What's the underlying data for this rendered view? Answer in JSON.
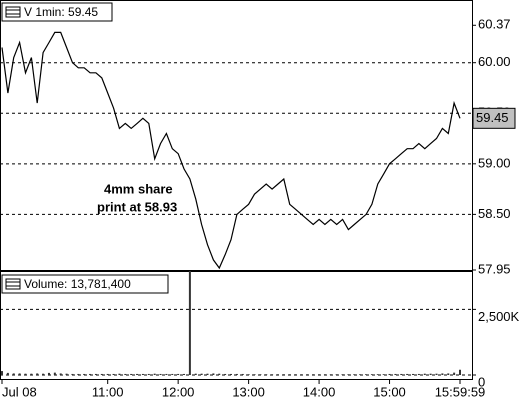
{
  "chart_data": [
    {
      "type": "line",
      "legend": "V 1min: 59.45",
      "color": "#000000",
      "values": [
        60.15,
        59.7,
        60.05,
        60.2,
        59.9,
        60.05,
        59.6,
        60.1,
        60.2,
        60.3,
        60.3,
        60.15,
        60.0,
        59.95,
        59.95,
        59.9,
        59.9,
        59.85,
        59.7,
        59.55,
        59.35,
        59.4,
        59.35,
        59.4,
        59.45,
        59.4,
        59.05,
        59.2,
        59.3,
        59.15,
        59.1,
        58.95,
        58.85,
        58.65,
        58.4,
        58.2,
        58.05,
        57.97,
        58.1,
        58.25,
        58.5,
        58.55,
        58.6,
        58.7,
        58.75,
        58.8,
        58.75,
        58.8,
        58.85,
        58.6,
        58.55,
        58.5,
        58.45,
        58.4,
        58.45,
        58.4,
        58.45,
        58.4,
        58.45,
        58.35,
        58.4,
        58.45,
        58.5,
        58.6,
        58.8,
        58.9,
        59.0,
        59.05,
        59.1,
        59.15,
        59.15,
        59.2,
        59.15,
        59.2,
        59.25,
        59.35,
        59.3,
        59.6,
        59.45
      ],
      "last_price": 59.45,
      "annotation": [
        "4mm share",
        "print at 58.93"
      ],
      "ylim": [
        57.95,
        60.62
      ],
      "yticks": [
        60.37,
        {
          "value": 60,
          "label": "60.00"
        },
        {
          "value": 59.5,
          "label": "59.50"
        },
        {
          "value": 59,
          "label": "59.00"
        },
        {
          "value": 58.5,
          "label": "58.50"
        },
        57.95
      ],
      "grid": true
    },
    {
      "type": "bar",
      "legend": "Volume: 13,781,400",
      "color": "#333333",
      "categories": [
        "Jul 08",
        null,
        null,
        null,
        null,
        null,
        null,
        null,
        null,
        null,
        null,
        null,
        null,
        null,
        null,
        null,
        null,
        null,
        "11:00",
        null,
        null,
        null,
        null,
        null,
        null,
        null,
        null,
        null,
        null,
        null,
        "12:00",
        null,
        null,
        null,
        null,
        null,
        null,
        null,
        null,
        null,
        null,
        null,
        "13:00",
        null,
        null,
        null,
        null,
        null,
        null,
        null,
        null,
        null,
        null,
        null,
        "14:00",
        null,
        null,
        null,
        null,
        null,
        null,
        null,
        null,
        null,
        null,
        null,
        "15:00",
        null,
        null,
        null,
        null,
        null,
        null,
        null,
        null,
        null,
        null,
        null,
        "15:59:59"
      ],
      "values": [
        150000,
        80000,
        60000,
        60000,
        50000,
        50000,
        60000,
        50000,
        80000,
        90000,
        60000,
        50000,
        40000,
        40000,
        40000,
        40000,
        40000,
        40000,
        40000,
        40000,
        50000,
        40000,
        40000,
        40000,
        40000,
        40000,
        50000,
        40000,
        40000,
        40000,
        40000,
        40000,
        4000000,
        50000,
        50000,
        50000,
        60000,
        50000,
        40000,
        40000,
        40000,
        40000,
        30000,
        30000,
        30000,
        30000,
        30000,
        30000,
        30000,
        30000,
        30000,
        30000,
        30000,
        30000,
        30000,
        30000,
        30000,
        30000,
        30000,
        30000,
        30000,
        30000,
        30000,
        30000,
        30000,
        30000,
        40000,
        40000,
        40000,
        40000,
        40000,
        40000,
        50000,
        50000,
        50000,
        60000,
        60000,
        90000,
        200000
      ],
      "ylim": [
        0,
        4000000
      ],
      "yticks": [
        0,
        {
          "value": 2500000,
          "label": "2,500K"
        }
      ],
      "grid": true
    }
  ]
}
